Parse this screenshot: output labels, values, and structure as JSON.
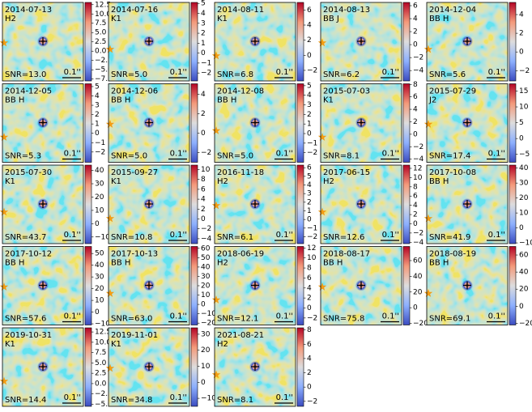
{
  "scale_label": "0.1''",
  "panels": [
    {
      "date": "2014-07-13",
      "band": "H2",
      "snr": "SNR=13.0",
      "clim": [
        -8,
        13.1
      ],
      "ticks": [
        12.5,
        {
          "value": 10,
          "label": "10.0"
        },
        7.5,
        {
          "value": 5,
          "label": "5.0"
        },
        2.5,
        {
          "value": 0,
          "label": "0.0"
        },
        {
          "value": -2.5,
          "label": "−2.5"
        },
        {
          "value": -5,
          "label": "−5.0"
        },
        {
          "value": -7.5,
          "label": "−7.5"
        }
      ]
    },
    {
      "date": "2014-07-16",
      "band": "K1",
      "snr": "SNR=5.0",
      "clim": [
        -2.8,
        5.1
      ],
      "ticks": [
        5,
        4,
        3,
        2,
        1,
        0,
        {
          "value": -1,
          "label": "−1"
        },
        {
          "value": -2,
          "label": "−2"
        }
      ]
    },
    {
      "date": "2014-08-11",
      "band": "K1",
      "snr": "SNR=6.8",
      "clim": [
        -3.4,
        7
      ],
      "ticks": [
        6,
        4,
        2,
        0,
        {
          "value": -2,
          "label": "−2"
        }
      ]
    },
    {
      "date": "2014-08-13",
      "band": "BB J",
      "snr": "SNR=6.2",
      "clim": [
        -5.6,
        6.5
      ],
      "ticks": [
        6,
        4,
        2,
        0,
        {
          "value": -2,
          "label": "−2"
        },
        {
          "value": -4,
          "label": "−4"
        }
      ]
    },
    {
      "date": "2014-12-04",
      "band": "BB H",
      "snr": "SNR=5.6",
      "clim": [
        -3.1,
        5.3
      ],
      "ticks": [
        4,
        2,
        0,
        {
          "value": -2,
          "label": "−2"
        }
      ]
    },
    {
      "date": "2014-12-05",
      "band": "BB H",
      "snr": "SNR=5.3",
      "clim": [
        -3.1,
        5.3
      ],
      "ticks": [
        5,
        4,
        3,
        2,
        1,
        0,
        {
          "value": -1,
          "label": "−1"
        },
        {
          "value": -2,
          "label": "−2"
        }
      ]
    },
    {
      "date": "2014-12-06",
      "band": "BB H",
      "snr": "SNR=5.0",
      "clim": [
        -3,
        5.1
      ],
      "ticks": [
        4,
        2,
        0,
        {
          "value": -2,
          "label": "−2"
        }
      ]
    },
    {
      "date": "2014-12-08",
      "band": "BB H",
      "snr": "SNR=5.0",
      "clim": [
        -3,
        5.2
      ],
      "ticks": [
        5,
        4,
        3,
        2,
        1,
        0,
        {
          "value": -1,
          "label": "−1"
        },
        {
          "value": -2,
          "label": "−2"
        }
      ]
    },
    {
      "date": "2015-07-03",
      "band": "K1",
      "snr": "SNR=8.1",
      "clim": [
        -4.5,
        8.1
      ],
      "ticks": [
        8,
        6,
        4,
        2,
        0,
        {
          "value": -2,
          "label": "−2"
        },
        {
          "value": -4,
          "label": "−4"
        }
      ]
    },
    {
      "date": "2015-07-29",
      "band": "J2",
      "snr": "SNR=17.4",
      "clim": [
        -7.5,
        17.3
      ],
      "ticks": [
        15,
        10,
        5,
        0,
        {
          "value": -5,
          "label": "−5"
        }
      ]
    },
    {
      "date": "2015-07-30",
      "band": "K1",
      "snr": "SNR=43.7",
      "clim": [
        -15,
        44
      ],
      "ticks": [
        40,
        30,
        20,
        10,
        0,
        {
          "value": -10,
          "label": "−10"
        }
      ]
    },
    {
      "date": "2015-09-27",
      "band": "K1",
      "snr": "SNR=10.8",
      "clim": [
        -5,
        10.9
      ],
      "ticks": [
        10,
        8,
        6,
        4,
        2,
        0,
        {
          "value": -2,
          "label": "−2"
        },
        {
          "value": -4,
          "label": "−4"
        }
      ]
    },
    {
      "date": "2016-11-18",
      "band": "H2",
      "snr": "SNR=6.1",
      "clim": [
        -2.8,
        6.3
      ],
      "ticks": [
        6,
        5,
        4,
        3,
        2,
        1,
        0,
        {
          "value": -1,
          "label": "−1"
        },
        {
          "value": -2,
          "label": "−2"
        }
      ]
    },
    {
      "date": "2017-06-15",
      "band": "H2",
      "snr": "SNR=12.6",
      "clim": [
        -4.3,
        12.7
      ],
      "ticks": [
        12,
        10,
        8,
        6,
        4,
        2,
        0,
        {
          "value": -2,
          "label": "−2"
        },
        {
          "value": -4,
          "label": "−4"
        }
      ]
    },
    {
      "date": "2017-10-08",
      "band": "BB H",
      "snr": "SNR=41.9",
      "clim": [
        -10.5,
        42
      ],
      "ticks": [
        40,
        30,
        20,
        10,
        0,
        {
          "value": -10,
          "label": "−10"
        }
      ]
    },
    {
      "date": "2017-10-12",
      "band": "BB H",
      "snr": "SNR=57.6",
      "clim": [
        -11,
        56
      ],
      "ticks": [
        50,
        40,
        30,
        20,
        10,
        0,
        {
          "value": -10,
          "label": "−10"
        }
      ]
    },
    {
      "date": "2017-10-13",
      "band": "BB H",
      "snr": "SNR=63.0",
      "clim": [
        -22,
        62
      ],
      "ticks": [
        60,
        50,
        40,
        30,
        20,
        10,
        0,
        {
          "value": -10,
          "label": "−10"
        },
        {
          "value": -20,
          "label": "−20"
        }
      ]
    },
    {
      "date": "2018-06-19",
      "band": "H2",
      "snr": "SNR=12.1",
      "clim": [
        -3.4,
        12.3
      ],
      "ticks": [
        12,
        10,
        8,
        6,
        4,
        2,
        0,
        {
          "value": -2,
          "label": "−2"
        }
      ]
    },
    {
      "date": "2018-08-17",
      "band": "BB H",
      "snr": "SNR=75.8",
      "clim": [
        -22,
        78
      ],
      "ticks": [
        60,
        40,
        20,
        0,
        {
          "value": -20,
          "label": "−20"
        }
      ]
    },
    {
      "date": "2018-08-19",
      "band": "BB H",
      "snr": "SNR=69.1",
      "clim": [
        -22,
        70
      ],
      "ticks": [
        60,
        40,
        20,
        0,
        {
          "value": -20,
          "label": "−20"
        }
      ]
    },
    {
      "date": "2019-10-31",
      "band": "K1",
      "snr": "SNR=14.4",
      "clim": [
        -5.5,
        13.5
      ],
      "ticks": [
        12.5,
        {
          "value": 10,
          "label": "10.0"
        },
        7.5,
        {
          "value": 5,
          "label": "5.0"
        },
        2.5,
        {
          "value": 0,
          "label": "0.0"
        },
        {
          "value": -2.5,
          "label": "−2.5"
        },
        {
          "value": -5,
          "label": "−5.0"
        }
      ]
    },
    {
      "date": "2019-11-01",
      "band": "K1",
      "snr": "SNR=34.8",
      "clim": [
        -15,
        34
      ],
      "ticks": [
        30,
        20,
        10,
        0,
        {
          "value": -10,
          "label": "−10"
        }
      ]
    },
    {
      "date": "2021-08-21",
      "band": "H2",
      "snr": "SNR=8.1",
      "clim": [
        -2.7,
        8.3
      ],
      "ticks": [
        8,
        6,
        4,
        2,
        0,
        {
          "value": -2,
          "label": "−2"
        }
      ]
    }
  ]
}
